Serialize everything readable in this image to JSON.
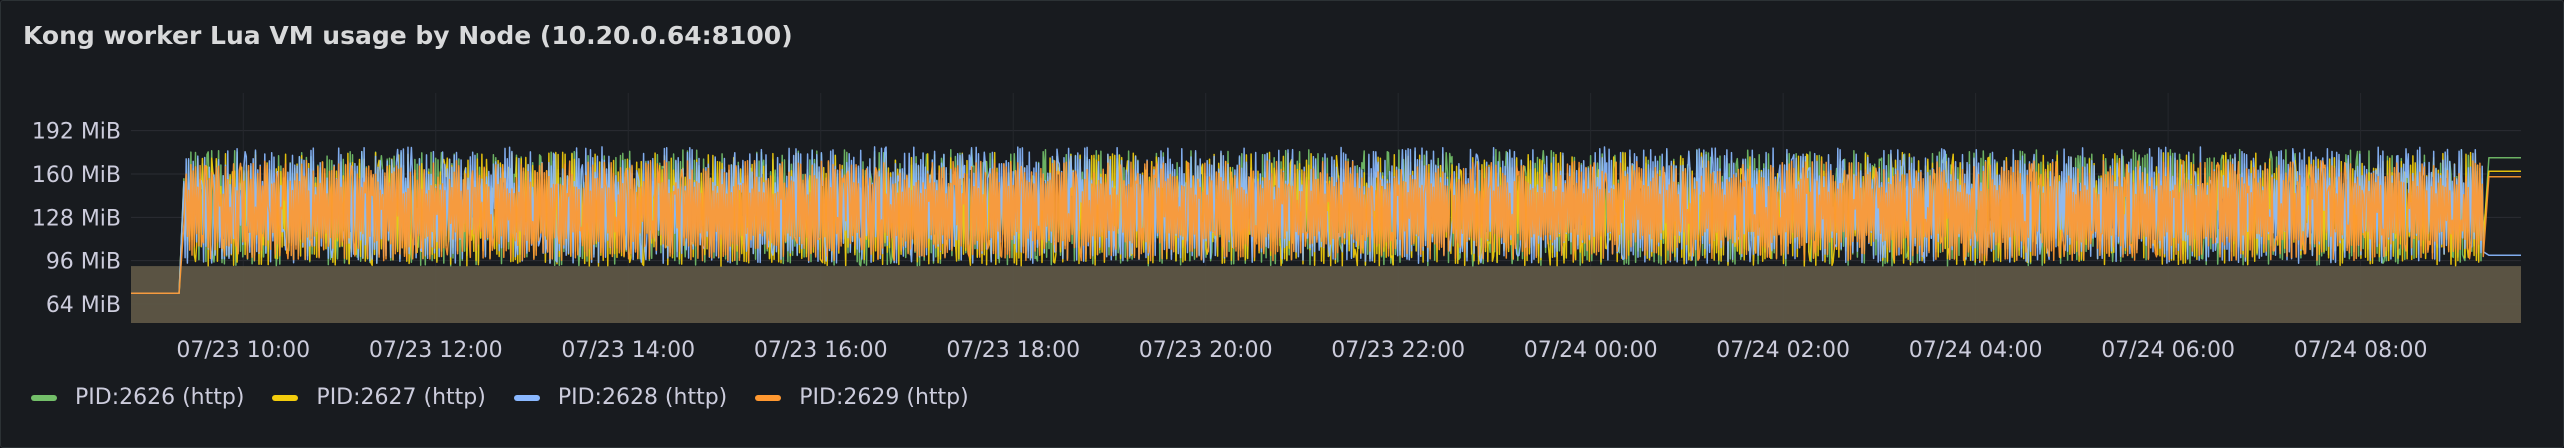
{
  "panel": {
    "title": "Kong worker Lua VM usage by Node (10.20.0.64:8100)"
  },
  "chart_data": {
    "type": "line",
    "title": "Kong worker Lua VM usage by Node (10.20.0.64:8100)",
    "ylim": [
      50,
      205
    ],
    "y_ticks": [
      64,
      96,
      128,
      160,
      192
    ],
    "y_tick_labels": [
      "64 MiB",
      "96 MiB",
      "128 MiB",
      "160 MiB",
      "192 MiB"
    ],
    "x_range": [
      "07/23 08:50",
      "07/24 09:40"
    ],
    "x_tick_labels": [
      "07/23 10:00",
      "07/23 12:00",
      "07/23 14:00",
      "07/23 16:00",
      "07/23 18:00",
      "07/23 20:00",
      "07/23 22:00",
      "07/24 00:00",
      "07/24 02:00",
      "07/24 04:00",
      "07/24 06:00",
      "07/24 08:00"
    ],
    "x_tick_hours": [
      1.1667,
      3.1667,
      5.1667,
      7.1667,
      9.1667,
      11.1667,
      13.1667,
      15.1667,
      17.1667,
      19.1667,
      21.1667,
      23.1667
    ],
    "x_hours_total": 24.8333,
    "grid": true,
    "legend_position": "bottom-left",
    "series_style": "dense oscillation between approx. 90 MiB and 180 MiB; baseline 72 MiB until approx. 07/23 09:20",
    "series": [
      {
        "name": "PID:2626 (http)",
        "color": "#73bf69",
        "baseline_mib": 72,
        "low_mib": 92,
        "high_mib": 178,
        "end_mib": 172
      },
      {
        "name": "PID:2627 (http)",
        "color": "#f2cc0c",
        "baseline_mib": 72,
        "low_mib": 92,
        "high_mib": 176,
        "end_mib": 162
      },
      {
        "name": "PID:2628 (http)",
        "color": "#8ab8ff",
        "baseline_mib": 72,
        "low_mib": 94,
        "high_mib": 180,
        "end_mib": 100
      },
      {
        "name": "PID:2629 (http)",
        "color": "#ff9830",
        "baseline_mib": 72,
        "low_mib": 96,
        "high_mib": 170,
        "end_mib": 158
      }
    ]
  }
}
